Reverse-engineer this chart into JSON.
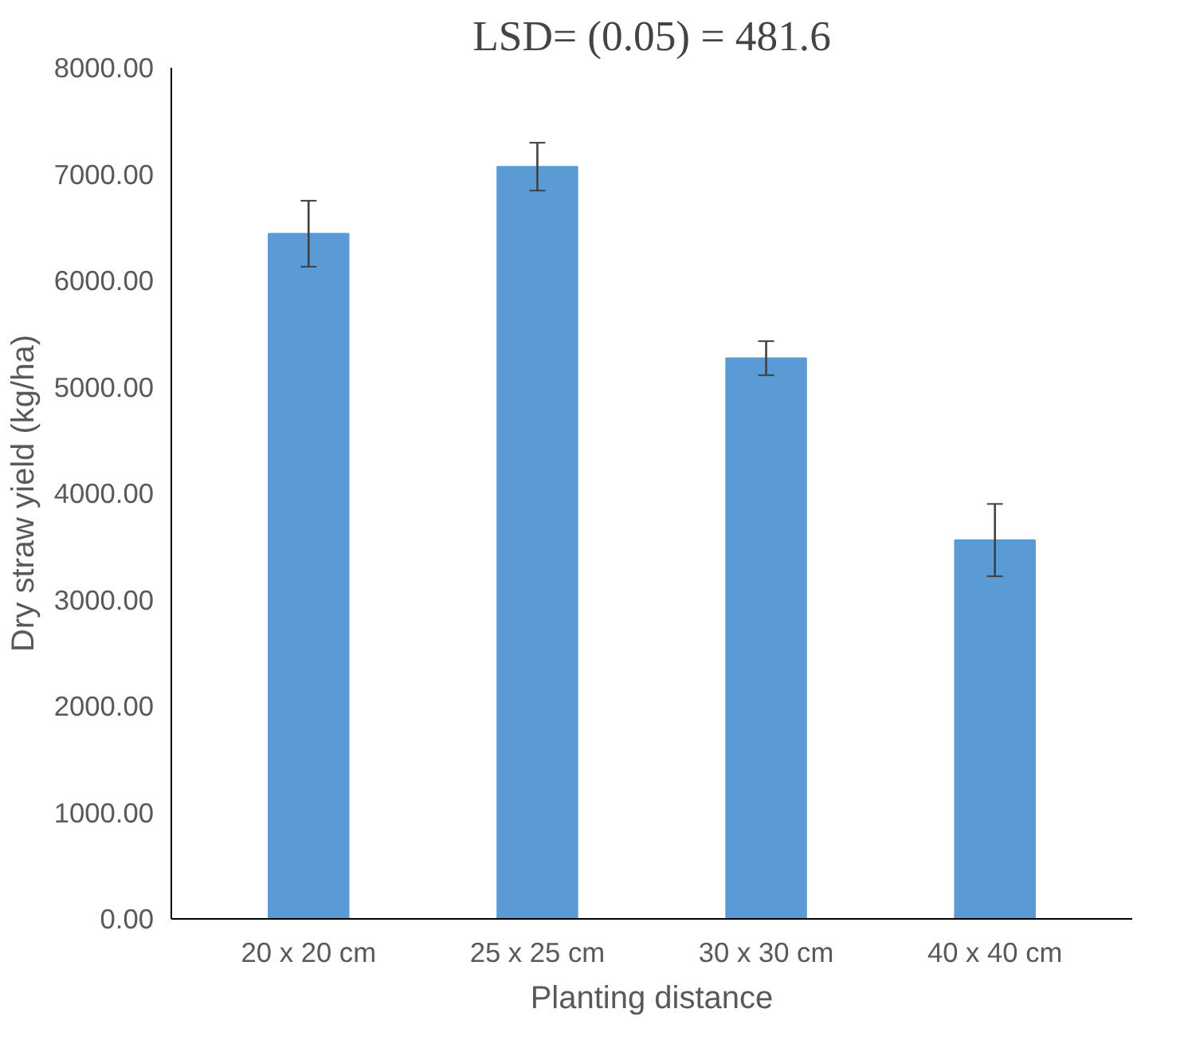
{
  "chart_data": {
    "type": "bar",
    "title": "LSD= (0.05) = 481.6",
    "xlabel": "Planting distance",
    "ylabel": "Dry straw yield (kg/ha)",
    "categories": [
      "20 x 20 cm",
      "25 x 25 cm",
      "30 x 30 cm",
      "40 x 40 cm"
    ],
    "values": [
      6440,
      7070,
      5270,
      3560
    ],
    "errors": [
      310,
      225,
      160,
      340
    ],
    "color": "#5b9bd5",
    "ylim": [
      0,
      8000
    ],
    "yticks": [
      {
        "value": 0,
        "label": "0.00"
      },
      {
        "value": 1000,
        "label": "1000.00"
      },
      {
        "value": 2000,
        "label": "2000.00"
      },
      {
        "value": 3000,
        "label": "3000.00"
      },
      {
        "value": 4000,
        "label": "4000.00"
      },
      {
        "value": 5000,
        "label": "5000.00"
      },
      {
        "value": 6000,
        "label": "6000.00"
      },
      {
        "value": 7000,
        "label": "7000.00"
      },
      {
        "value": 8000,
        "label": "8000.00"
      }
    ],
    "grid": false
  }
}
